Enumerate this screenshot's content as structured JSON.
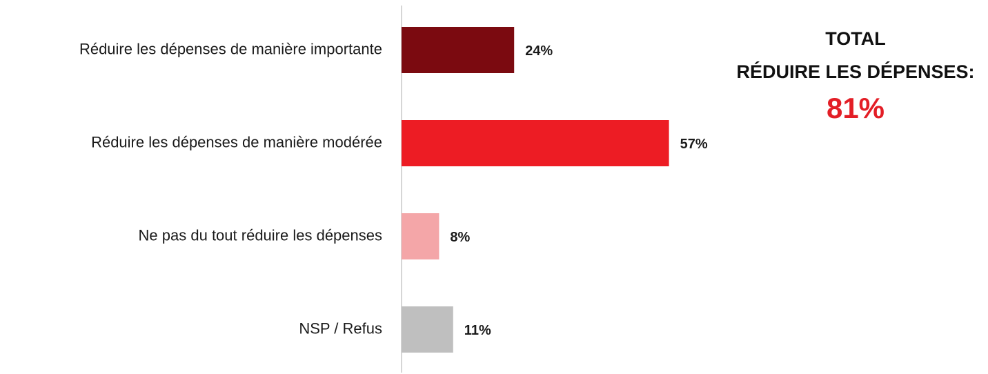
{
  "chart_data": {
    "type": "barh",
    "categories": [
      "Réduire les dépenses de manière importante",
      "Réduire les dépenses de manière modérée",
      "Ne pas du tout réduire les dépenses",
      "NSP / Refus"
    ],
    "values": [
      24,
      57,
      8,
      11
    ],
    "value_labels": [
      "24%",
      "57%",
      "8%",
      "11%"
    ],
    "colors": [
      "#7b0a10",
      "#ed1c24",
      "#f4a6a8",
      "#bfbfbf"
    ],
    "annotation": {
      "lines": [
        "TOTAL",
        "RÉDUIRE LES DÉPENSES:"
      ],
      "total": "81%"
    }
  }
}
